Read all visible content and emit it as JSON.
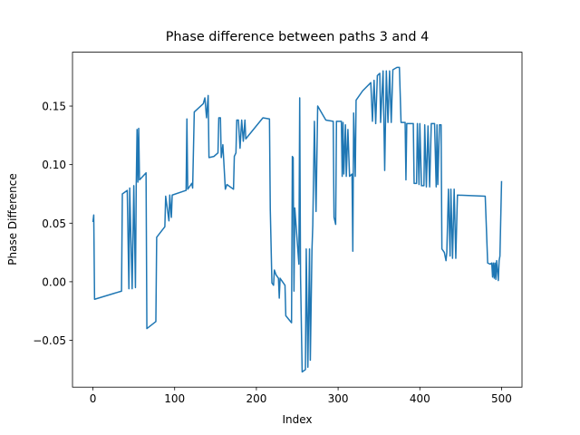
{
  "chart_data": {
    "type": "line",
    "title": "Phase difference between paths 3 and 4",
    "x_label": "Index",
    "y_label": "Phase Difference",
    "color": "#1f77b4",
    "grid": false,
    "xlim": [
      -25,
      525
    ],
    "ylim": [
      -0.09,
      0.196
    ],
    "xticks": [
      0,
      100,
      200,
      300,
      400,
      500
    ],
    "yticks": [
      {
        "value": -0.05,
        "label": "−0.05"
      },
      {
        "value": 0,
        "label": "0.00"
      },
      {
        "value": 0.05,
        "label": "0.05"
      },
      {
        "value": 0.1,
        "label": "0.10"
      },
      {
        "value": 0.15,
        "label": "0.15"
      }
    ],
    "x": [
      0,
      1,
      2,
      35,
      36,
      42,
      44,
      45,
      48,
      50,
      52,
      53,
      54,
      55,
      56,
      57,
      65,
      66,
      77,
      78,
      88,
      89,
      93,
      94,
      96,
      97,
      114,
      115,
      116,
      121,
      122,
      124,
      135,
      137,
      139,
      141,
      142,
      148,
      153,
      154,
      156,
      157,
      159,
      162,
      164,
      172,
      173,
      175,
      176,
      178,
      180,
      182,
      184,
      186,
      187,
      208,
      216,
      217,
      219,
      221,
      222,
      224,
      227,
      228,
      229,
      235,
      236,
      243,
      244,
      245,
      246,
      247,
      252,
      253,
      254,
      256,
      260,
      261,
      263,
      265,
      266,
      268,
      269,
      271,
      273,
      275,
      285,
      294,
      295,
      297,
      298,
      304,
      305,
      306,
      307,
      309,
      310,
      312,
      314,
      317,
      318,
      319,
      321,
      322,
      330,
      340,
      342,
      344,
      346,
      348,
      351,
      352,
      355,
      357,
      359,
      361,
      363,
      365,
      367,
      372,
      375,
      377,
      382,
      383,
      384,
      392,
      393,
      396,
      397,
      399,
      400,
      402,
      405,
      406,
      408,
      410,
      412,
      414,
      418,
      420,
      421,
      422,
      424,
      426,
      427,
      430,
      432,
      433,
      435,
      437,
      438,
      440,
      442,
      444,
      446,
      480,
      483,
      486,
      488,
      489,
      490,
      491,
      492,
      493,
      494,
      496,
      497,
      498,
      500
    ],
    "values": [
      0.051,
      0.057,
      -0.015,
      -0.008,
      0.075,
      0.078,
      -0.006,
      0.08,
      -0.006,
      0.082,
      -0.005,
      0.083,
      0.13,
      0.085,
      0.131,
      0.087,
      0.093,
      -0.04,
      -0.034,
      0.038,
      0.047,
      0.073,
      0.052,
      0.074,
      0.055,
      0.074,
      0.078,
      0.139,
      0.079,
      0.084,
      0.08,
      0.145,
      0.152,
      0.157,
      0.14,
      0.159,
      0.106,
      0.107,
      0.11,
      0.14,
      0.14,
      0.106,
      0.117,
      0.079,
      0.083,
      0.079,
      0.107,
      0.11,
      0.138,
      0.138,
      0.114,
      0.138,
      0.12,
      0.138,
      0.122,
      0.14,
      0.139,
      0.062,
      -0.001,
      -0.003,
      0.01,
      0.006,
      0.003,
      -0.014,
      0.003,
      -0.003,
      -0.029,
      -0.035,
      0.107,
      0.106,
      -0.008,
      0.063,
      0.015,
      0.157,
      0.006,
      -0.077,
      -0.075,
      0.028,
      -0.073,
      0.028,
      -0.067,
      0.027,
      0.048,
      0.137,
      0.06,
      0.15,
      0.138,
      0.137,
      0.055,
      0.049,
      0.137,
      0.137,
      0.09,
      0.136,
      0.092,
      0.134,
      0.09,
      0.13,
      0.09,
      0.092,
      0.026,
      0.144,
      0.09,
      0.155,
      0.163,
      0.17,
      0.137,
      0.172,
      0.135,
      0.176,
      0.178,
      0.136,
      0.18,
      0.095,
      0.18,
      0.136,
      0.18,
      0.136,
      0.181,
      0.183,
      0.183,
      0.136,
      0.136,
      0.087,
      0.135,
      0.135,
      0.084,
      0.084,
      0.135,
      0.083,
      0.135,
      0.082,
      0.082,
      0.134,
      0.081,
      0.133,
      0.081,
      0.135,
      0.135,
      0.081,
      0.134,
      0.083,
      0.134,
      0.134,
      0.028,
      0.025,
      0.018,
      0.025,
      0.079,
      0.022,
      0.079,
      0.02,
      0.079,
      0.02,
      0.074,
      0.073,
      0.016,
      0.015,
      0.016,
      0.004,
      0.016,
      0.003,
      0.016,
      0.002,
      0.018,
      0.001,
      0.018,
      0.022,
      0.086
    ]
  }
}
